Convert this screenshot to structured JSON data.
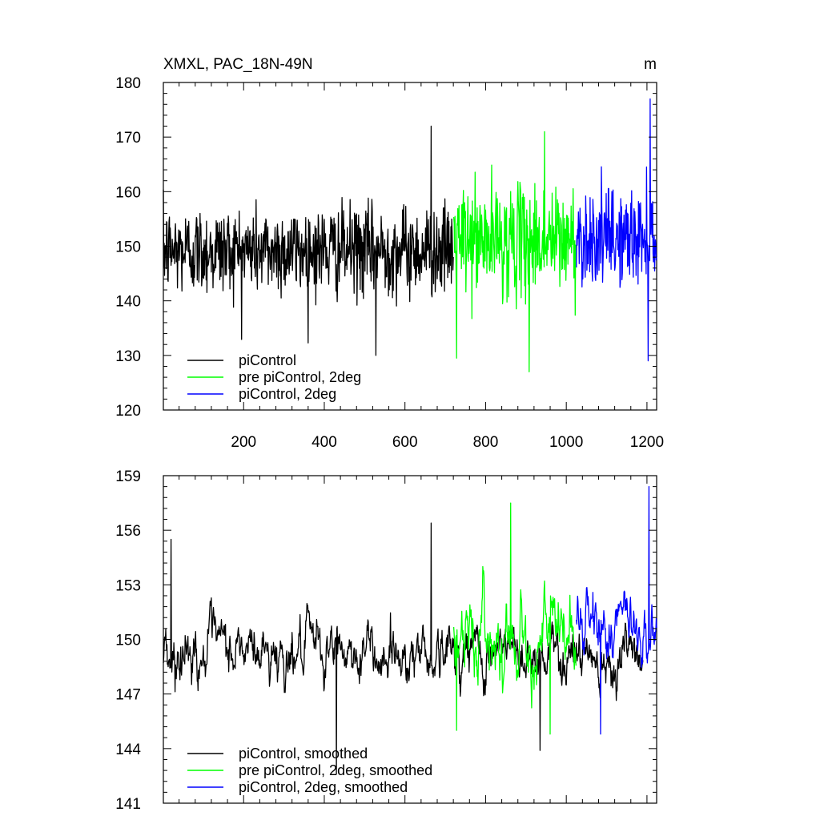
{
  "figure": {
    "title_left": "XMXL, PAC_18N-49N",
    "title_right": "m"
  },
  "chart_data": [
    {
      "type": "line",
      "title": "XMXL, PAC_18N-49N",
      "units": "m",
      "xlim": [
        1,
        1224
      ],
      "ylim": [
        120,
        180
      ],
      "x_ticks": [
        200,
        400,
        600,
        800,
        1000,
        1200
      ],
      "x_tick_labels": [
        "200",
        "400",
        "600",
        "800",
        "1000",
        "1200"
      ],
      "y_ticks": [
        120,
        130,
        140,
        150,
        160,
        170,
        180
      ],
      "y_tick_labels": [
        "120",
        "130",
        "140",
        "150",
        "160",
        "170",
        "180"
      ],
      "grid": false,
      "legend_position": "bottom-left",
      "series": [
        {
          "name": "piControl",
          "color": "#000000",
          "x_range": [
            1,
            720
          ],
          "mean": 149.2,
          "amplitude": 6.5,
          "extremes": [
            [
              665,
              172
            ],
            [
              528,
              130
            ],
            [
              722,
              131
            ]
          ]
        },
        {
          "name": "pre piControl, 2deg",
          "color": "#00ff00",
          "x_range": [
            721,
            1024
          ],
          "mean": 151.0,
          "amplitude": 8.0,
          "extremes": [
            [
              908,
              127
            ],
            [
              946,
              171
            ],
            [
              728,
              129.5
            ]
          ]
        },
        {
          "name": "piControl, 2deg",
          "color": "#0000ff",
          "x_range": [
            1025,
            1224
          ],
          "mean": 151.5,
          "amplitude": 7.0,
          "extremes": [
            [
              1203,
              129
            ],
            [
              1208,
              177
            ]
          ]
        }
      ]
    },
    {
      "type": "line",
      "title": "",
      "xlim": [
        1,
        1224
      ],
      "ylim": [
        141,
        159
      ],
      "x_ticks": [
        200,
        400,
        600,
        800,
        1000,
        1200
      ],
      "y_ticks": [
        141,
        144,
        147,
        150,
        153,
        156,
        159
      ],
      "y_tick_labels": [
        "141",
        "144",
        "147",
        "150",
        "153",
        "156",
        "159"
      ],
      "grid": false,
      "legend_position": "bottom-left",
      "series": [
        {
          "name": "piControl, smoothed",
          "color": "#000000",
          "x_range": [
            1,
            1190
          ],
          "mean": 149.3,
          "amplitude": 2.0,
          "extremes": [
            [
              665,
              156.4
            ],
            [
              430,
              142.6
            ],
            [
              935,
              143.9
            ],
            [
              20,
              155.5
            ]
          ]
        },
        {
          "name": "pre piControl, 2deg, smoothed",
          "color": "#00ff00",
          "x_range": [
            721,
            1024
          ],
          "mean": 150.3,
          "amplitude": 2.6,
          "extremes": [
            [
              862,
              157.5
            ],
            [
              728,
              145.0
            ],
            [
              960,
              144.8
            ]
          ]
        },
        {
          "name": "piControl, 2deg, smoothed",
          "color": "#0000ff",
          "x_range": [
            1025,
            1224
          ],
          "mean": 150.7,
          "amplitude": 2.3,
          "extremes": [
            [
              1205,
              158.4
            ],
            [
              1085,
              144.8
            ]
          ]
        }
      ]
    }
  ]
}
